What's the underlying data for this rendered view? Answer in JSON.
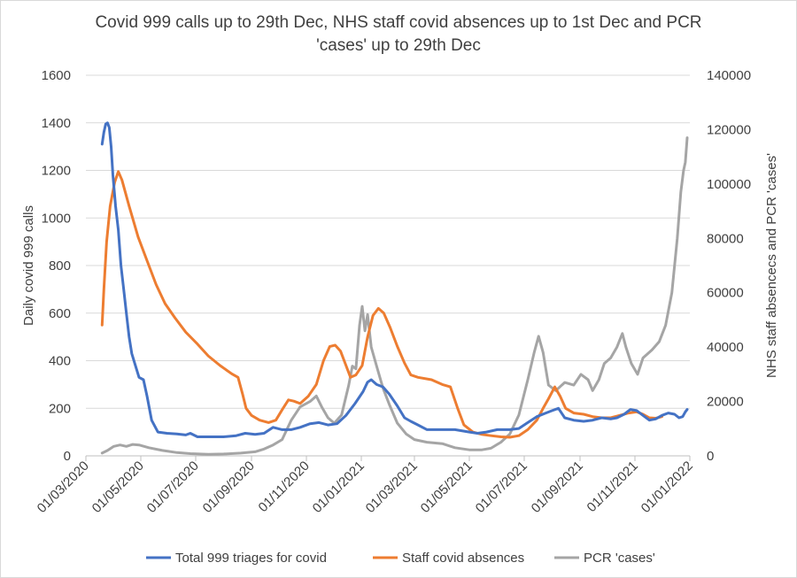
{
  "chart_data": {
    "type": "line",
    "title": "Covid 999 calls up to 29th Dec, NHS staff covid absences up to 1st Dec and PCR 'cases' up to 29th Dec",
    "title_lines": [
      "Covid 999 calls up to 29th Dec, NHS staff covid absences up to 1st Dec and PCR",
      "'cases' up to 29th Dec"
    ],
    "ylabel_left": "Daily covid 999 calls",
    "ylabel_right": "NHS staff absencecs and PCR 'cases'",
    "xlim": [
      "2020-03-01",
      "2022-01-01"
    ],
    "ylim_left": [
      0,
      1600
    ],
    "ylim_right": [
      0,
      140000
    ],
    "x_ticks": [
      "01/03/2020",
      "01/05/2020",
      "01/07/2020",
      "01/09/2020",
      "01/11/2020",
      "01/01/2021",
      "01/03/2021",
      "01/05/2021",
      "01/07/2021",
      "01/09/2021",
      "01/11/2021",
      "01/01/2022"
    ],
    "y_ticks_left": [
      "0",
      "200",
      "400",
      "600",
      "800",
      "1000",
      "1200",
      "1400",
      "1600"
    ],
    "y_ticks_right": [
      "0",
      "20000",
      "40000",
      "60000",
      "80000",
      "100000",
      "120000",
      "140000"
    ],
    "grid": true,
    "legend_position": "bottom",
    "series": [
      {
        "name": "Total 999 triages for covid",
        "color": "#4472C4",
        "axis": "left",
        "points": [
          [
            "2020-03-19",
            1310
          ],
          [
            "2020-03-21",
            1360
          ],
          [
            "2020-03-23",
            1395
          ],
          [
            "2020-03-25",
            1400
          ],
          [
            "2020-03-27",
            1380
          ],
          [
            "2020-03-29",
            1300
          ],
          [
            "2020-03-31",
            1180
          ],
          [
            "2020-04-03",
            1050
          ],
          [
            "2020-04-06",
            950
          ],
          [
            "2020-04-09",
            800
          ],
          [
            "2020-04-12",
            700
          ],
          [
            "2020-04-15",
            600
          ],
          [
            "2020-04-18",
            500
          ],
          [
            "2020-04-21",
            430
          ],
          [
            "2020-04-25",
            380
          ],
          [
            "2020-04-29",
            330
          ],
          [
            "2020-05-04",
            320
          ],
          [
            "2020-05-08",
            250
          ],
          [
            "2020-05-13",
            150
          ],
          [
            "2020-05-20",
            100
          ],
          [
            "2020-05-30",
            95
          ],
          [
            "2020-06-10",
            92
          ],
          [
            "2020-06-20",
            88
          ],
          [
            "2020-06-25",
            95
          ],
          [
            "2020-07-03",
            80
          ],
          [
            "2020-07-15",
            80
          ],
          [
            "2020-08-01",
            80
          ],
          [
            "2020-08-15",
            85
          ],
          [
            "2020-08-25",
            95
          ],
          [
            "2020-09-05",
            90
          ],
          [
            "2020-09-15",
            95
          ],
          [
            "2020-09-25",
            120
          ],
          [
            "2020-10-05",
            110
          ],
          [
            "2020-10-15",
            110
          ],
          [
            "2020-10-25",
            120
          ],
          [
            "2020-11-05",
            135
          ],
          [
            "2020-11-15",
            140
          ],
          [
            "2020-11-25",
            130
          ],
          [
            "2020-12-05",
            135
          ],
          [
            "2020-12-15",
            170
          ],
          [
            "2020-12-25",
            220
          ],
          [
            "2021-01-03",
            270
          ],
          [
            "2021-01-08",
            310
          ],
          [
            "2021-01-12",
            320
          ],
          [
            "2021-01-18",
            300
          ],
          [
            "2021-01-25",
            290
          ],
          [
            "2021-02-01",
            260
          ],
          [
            "2021-02-10",
            210
          ],
          [
            "2021-02-18",
            160
          ],
          [
            "2021-02-25",
            145
          ],
          [
            "2021-03-05",
            130
          ],
          [
            "2021-03-15",
            110
          ],
          [
            "2021-04-01",
            110
          ],
          [
            "2021-04-15",
            110
          ],
          [
            "2021-05-01",
            100
          ],
          [
            "2021-05-10",
            95
          ],
          [
            "2021-05-20",
            100
          ],
          [
            "2021-06-01",
            110
          ],
          [
            "2021-06-15",
            110
          ],
          [
            "2021-06-25",
            115
          ],
          [
            "2021-07-05",
            140
          ],
          [
            "2021-07-15",
            165
          ],
          [
            "2021-07-25",
            180
          ],
          [
            "2021-08-01",
            190
          ],
          [
            "2021-08-08",
            200
          ],
          [
            "2021-08-15",
            160
          ],
          [
            "2021-08-25",
            150
          ],
          [
            "2021-09-05",
            145
          ],
          [
            "2021-09-15",
            150
          ],
          [
            "2021-09-25",
            160
          ],
          [
            "2021-10-05",
            155
          ],
          [
            "2021-10-12",
            160
          ],
          [
            "2021-10-20",
            175
          ],
          [
            "2021-10-27",
            195
          ],
          [
            "2021-11-03",
            190
          ],
          [
            "2021-11-10",
            170
          ],
          [
            "2021-11-17",
            150
          ],
          [
            "2021-11-24",
            155
          ],
          [
            "2021-12-01",
            170
          ],
          [
            "2021-12-08",
            180
          ],
          [
            "2021-12-15",
            175
          ],
          [
            "2021-12-20",
            160
          ],
          [
            "2021-12-24",
            165
          ],
          [
            "2021-12-27",
            185
          ],
          [
            "2021-12-29",
            195
          ]
        ]
      },
      {
        "name": "Staff covid absences",
        "color": "#ED7D31",
        "axis": "left",
        "points": [
          [
            "2020-03-19",
            550
          ],
          [
            "2020-03-21",
            700
          ],
          [
            "2020-03-24",
            900
          ],
          [
            "2020-03-28",
            1050
          ],
          [
            "2020-04-02",
            1150
          ],
          [
            "2020-04-06",
            1195
          ],
          [
            "2020-04-10",
            1160
          ],
          [
            "2020-04-18",
            1050
          ],
          [
            "2020-04-28",
            920
          ],
          [
            "2020-05-08",
            820
          ],
          [
            "2020-05-18",
            720
          ],
          [
            "2020-05-28",
            640
          ],
          [
            "2020-06-08",
            580
          ],
          [
            "2020-06-20",
            520
          ],
          [
            "2020-07-03",
            470
          ],
          [
            "2020-07-15",
            420
          ],
          [
            "2020-07-28",
            380
          ],
          [
            "2020-08-10",
            345
          ],
          [
            "2020-08-17",
            330
          ],
          [
            "2020-08-22",
            260
          ],
          [
            "2020-08-26",
            200
          ],
          [
            "2020-09-01",
            170
          ],
          [
            "2020-09-10",
            150
          ],
          [
            "2020-09-20",
            140
          ],
          [
            "2020-09-28",
            150
          ],
          [
            "2020-10-06",
            200
          ],
          [
            "2020-10-12",
            235
          ],
          [
            "2020-10-18",
            230
          ],
          [
            "2020-10-25",
            220
          ],
          [
            "2020-11-03",
            250
          ],
          [
            "2020-11-12",
            300
          ],
          [
            "2020-11-20",
            400
          ],
          [
            "2020-11-27",
            460
          ],
          [
            "2020-12-03",
            465
          ],
          [
            "2020-12-09",
            440
          ],
          [
            "2020-12-15",
            380
          ],
          [
            "2020-12-20",
            330
          ],
          [
            "2020-12-26",
            340
          ],
          [
            "2021-01-02",
            380
          ],
          [
            "2021-01-08",
            500
          ],
          [
            "2021-01-14",
            590
          ],
          [
            "2021-01-20",
            620
          ],
          [
            "2021-01-26",
            600
          ],
          [
            "2021-02-02",
            540
          ],
          [
            "2021-02-10",
            460
          ],
          [
            "2021-02-18",
            390
          ],
          [
            "2021-02-25",
            340
          ],
          [
            "2021-03-05",
            330
          ],
          [
            "2021-03-20",
            320
          ],
          [
            "2021-04-01",
            300
          ],
          [
            "2021-04-10",
            290
          ],
          [
            "2021-04-18",
            200
          ],
          [
            "2021-04-25",
            130
          ],
          [
            "2021-05-05",
            100
          ],
          [
            "2021-05-15",
            90
          ],
          [
            "2021-05-25",
            85
          ],
          [
            "2021-06-05",
            80
          ],
          [
            "2021-06-15",
            78
          ],
          [
            "2021-06-25",
            85
          ],
          [
            "2021-07-05",
            110
          ],
          [
            "2021-07-15",
            150
          ],
          [
            "2021-07-22",
            200
          ],
          [
            "2021-07-28",
            240
          ],
          [
            "2021-08-04",
            290
          ],
          [
            "2021-08-10",
            250
          ],
          [
            "2021-08-16",
            200
          ],
          [
            "2021-08-25",
            180
          ],
          [
            "2021-09-05",
            175
          ],
          [
            "2021-09-15",
            165
          ],
          [
            "2021-09-25",
            160
          ],
          [
            "2021-10-05",
            160
          ],
          [
            "2021-10-15",
            170
          ],
          [
            "2021-10-25",
            180
          ],
          [
            "2021-11-03",
            185
          ],
          [
            "2021-11-10",
            175
          ],
          [
            "2021-11-17",
            160
          ],
          [
            "2021-11-24",
            158
          ],
          [
            "2021-12-01",
            165
          ]
        ]
      },
      {
        "name": "PCR 'cases'",
        "color": "#A5A5A5",
        "axis": "right",
        "points": [
          [
            "2020-03-19",
            1000
          ],
          [
            "2020-03-25",
            2000
          ],
          [
            "2020-04-01",
            3500
          ],
          [
            "2020-04-08",
            4000
          ],
          [
            "2020-04-15",
            3500
          ],
          [
            "2020-04-22",
            4200
          ],
          [
            "2020-04-29",
            4000
          ],
          [
            "2020-05-10",
            3000
          ],
          [
            "2020-05-25",
            2000
          ],
          [
            "2020-06-10",
            1200
          ],
          [
            "2020-06-25",
            800
          ],
          [
            "2020-07-15",
            600
          ],
          [
            "2020-08-01",
            700
          ],
          [
            "2020-08-20",
            1000
          ],
          [
            "2020-09-05",
            1500
          ],
          [
            "2020-09-15",
            2500
          ],
          [
            "2020-09-25",
            4000
          ],
          [
            "2020-10-05",
            6000
          ],
          [
            "2020-10-15",
            13000
          ],
          [
            "2020-10-25",
            18000
          ],
          [
            "2020-11-05",
            20000
          ],
          [
            "2020-11-12",
            22000
          ],
          [
            "2020-11-18",
            18000
          ],
          [
            "2020-11-25",
            14000
          ],
          [
            "2020-12-02",
            12000
          ],
          [
            "2020-12-10",
            15000
          ],
          [
            "2020-12-18",
            26000
          ],
          [
            "2020-12-22",
            33000
          ],
          [
            "2020-12-26",
            32000
          ],
          [
            "2020-12-30",
            48000
          ],
          [
            "2021-01-02",
            55000
          ],
          [
            "2021-01-05",
            46000
          ],
          [
            "2021-01-08",
            52000
          ],
          [
            "2021-01-12",
            40000
          ],
          [
            "2021-01-18",
            33000
          ],
          [
            "2021-01-25",
            25000
          ],
          [
            "2021-02-01",
            19000
          ],
          [
            "2021-02-10",
            12000
          ],
          [
            "2021-02-20",
            8000
          ],
          [
            "2021-03-01",
            6000
          ],
          [
            "2021-03-15",
            5000
          ],
          [
            "2021-04-01",
            4500
          ],
          [
            "2021-04-15",
            3000
          ],
          [
            "2021-05-01",
            2200
          ],
          [
            "2021-05-15",
            2200
          ],
          [
            "2021-05-25",
            2800
          ],
          [
            "2021-06-05",
            5000
          ],
          [
            "2021-06-15",
            8000
          ],
          [
            "2021-06-25",
            15000
          ],
          [
            "2021-07-05",
            28000
          ],
          [
            "2021-07-12",
            38000
          ],
          [
            "2021-07-17",
            44000
          ],
          [
            "2021-07-22",
            38000
          ],
          [
            "2021-07-28",
            26000
          ],
          [
            "2021-08-05",
            24000
          ],
          [
            "2021-08-15",
            27000
          ],
          [
            "2021-08-25",
            26000
          ],
          [
            "2021-09-02",
            30000
          ],
          [
            "2021-09-10",
            28000
          ],
          [
            "2021-09-15",
            24000
          ],
          [
            "2021-09-22",
            28000
          ],
          [
            "2021-09-28",
            34000
          ],
          [
            "2021-10-05",
            36000
          ],
          [
            "2021-10-12",
            40000
          ],
          [
            "2021-10-18",
            45000
          ],
          [
            "2021-10-22",
            40000
          ],
          [
            "2021-10-28",
            34000
          ],
          [
            "2021-11-04",
            30000
          ],
          [
            "2021-11-10",
            36000
          ],
          [
            "2021-11-20",
            39000
          ],
          [
            "2021-11-28",
            42000
          ],
          [
            "2021-12-05",
            48000
          ],
          [
            "2021-12-12",
            60000
          ],
          [
            "2021-12-18",
            80000
          ],
          [
            "2021-12-22",
            97000
          ],
          [
            "2021-12-25",
            105000
          ],
          [
            "2021-12-27",
            108000
          ],
          [
            "2021-12-29",
            117000
          ]
        ]
      }
    ]
  }
}
